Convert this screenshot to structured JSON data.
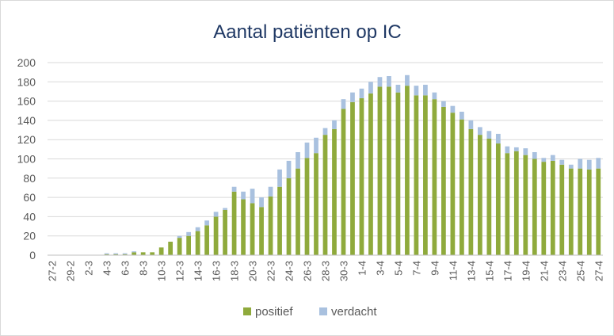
{
  "chart_data": {
    "type": "bar",
    "stacked": true,
    "title": "Aantal patiënten op IC",
    "xlabel": "",
    "ylabel": "",
    "ylim": [
      0,
      200
    ],
    "y_ticks": [
      0,
      20,
      40,
      60,
      80,
      100,
      120,
      140,
      160,
      180,
      200
    ],
    "grid": "horizontal",
    "legend_position": "bottom",
    "categories": [
      "27-2",
      "28-2",
      "29-2",
      "1-3",
      "2-3",
      "3-3",
      "4-3",
      "5-3",
      "6-3",
      "7-3",
      "8-3",
      "9-3",
      "10-3",
      "11-3",
      "12-3",
      "13-3",
      "14-3",
      "15-3",
      "16-3",
      "17-3",
      "18-3",
      "19-3",
      "20-3",
      "21-3",
      "22-3",
      "23-3",
      "24-3",
      "25-3",
      "26-3",
      "27-3",
      "28-3",
      "29-3",
      "30-3",
      "31-3",
      "1-4",
      "2-4",
      "3-4",
      "4-4",
      "5-4",
      "6-4",
      "7-4",
      "8-4",
      "9-4",
      "10-4",
      "11-4",
      "12-4",
      "13-4",
      "14-4",
      "15-4",
      "16-4",
      "17-4",
      "18-4",
      "19-4",
      "20-4",
      "21-4",
      "22-4",
      "23-4",
      "24-4",
      "25-4",
      "26-4",
      "27-4"
    ],
    "tick_labels": [
      "27-2",
      "29-2",
      "2-3",
      "4-3",
      "6-3",
      "8-3",
      "10-3",
      "12-3",
      "14-3",
      "16-3",
      "18-3",
      "20-3",
      "22-3",
      "24-3",
      "26-3",
      "28-3",
      "30-3",
      "1-4",
      "3-4",
      "5-4",
      "7-4",
      "9-4",
      "11-4",
      "13-4",
      "15-4",
      "17-4",
      "19-4",
      "21-4",
      "23-4",
      "25-4",
      "27-4"
    ],
    "series": [
      {
        "name": "positief",
        "color": "#8faa3c",
        "values": [
          0,
          0,
          0,
          0,
          0,
          0,
          1,
          1,
          1,
          3,
          3,
          3,
          8,
          14,
          18,
          20,
          25,
          31,
          40,
          47,
          66,
          58,
          54,
          50,
          61,
          71,
          80,
          90,
          101,
          106,
          125,
          131,
          152,
          159,
          163,
          168,
          175,
          175,
          169,
          176,
          166,
          166,
          162,
          154,
          148,
          141,
          131,
          125,
          121,
          116,
          106,
          108,
          104,
          100,
          97,
          98,
          94,
          90,
          90,
          89,
          90
        ],
        "tag": "positive"
      },
      {
        "name": "verdacht",
        "color": "#a9c1df",
        "values": [
          0,
          0,
          0,
          0,
          0,
          0,
          1,
          1,
          1,
          1,
          0,
          0,
          0,
          0,
          2,
          4,
          4,
          5,
          5,
          2,
          5,
          8,
          15,
          10,
          10,
          18,
          18,
          17,
          16,
          16,
          7,
          9,
          10,
          10,
          10,
          12,
          10,
          11,
          8,
          11,
          10,
          11,
          7,
          6,
          7,
          8,
          9,
          8,
          8,
          10,
          7,
          4,
          7,
          7,
          4,
          6,
          5,
          4,
          10,
          10,
          11
        ],
        "tag": "suspected"
      }
    ]
  }
}
